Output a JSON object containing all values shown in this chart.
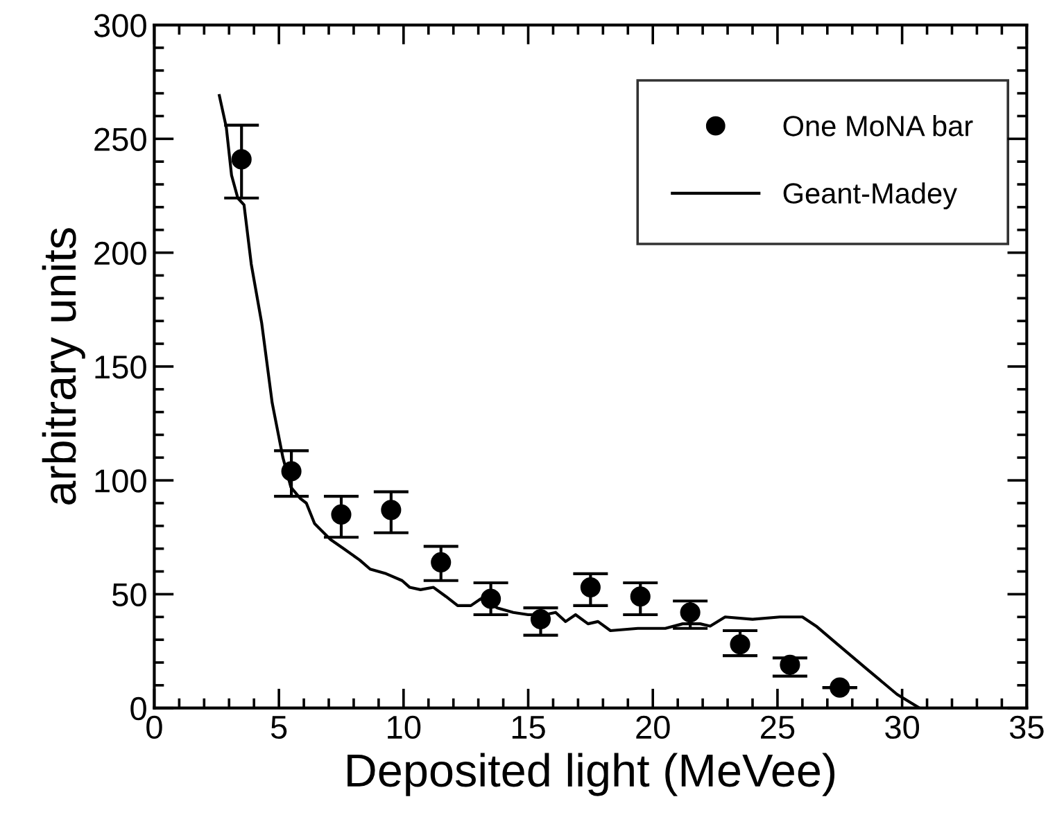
{
  "chart_data": {
    "type": "scatter",
    "xlabel": "Deposited light (MeVee)",
    "ylabel": "arbitrary units",
    "xlim": [
      0,
      35
    ],
    "xticks": [
      0,
      5,
      10,
      15,
      20,
      25,
      30,
      35
    ],
    "ylim": [
      0,
      300
    ],
    "yticks": [
      0,
      50,
      100,
      150,
      200,
      250,
      300
    ],
    "grid": false,
    "legend": "top right",
    "marker": "circle",
    "series": [
      {
        "name": "One MoNA bar",
        "color": "#000000",
        "x": [
          3.5,
          5.5,
          7.5,
          9.5,
          11.5,
          13.5,
          15.5,
          17.5,
          19.5,
          21.5,
          23.5,
          25.5,
          27.5
        ],
        "values": [
          241,
          104,
          85,
          87,
          64,
          48,
          39,
          53,
          49,
          42,
          28,
          19,
          9
        ],
        "errors": [
          [
            224,
            256
          ],
          [
            93,
            113
          ],
          [
            75,
            93
          ],
          [
            77,
            95
          ],
          [
            56,
            71
          ],
          [
            41,
            55
          ],
          [
            32,
            44
          ],
          [
            45,
            59
          ],
          [
            41,
            55
          ],
          [
            35,
            47
          ],
          [
            23,
            34
          ],
          [
            14,
            22
          ],
          null
        ]
      },
      {
        "name": "Geant-Madey",
        "type": "line",
        "color": "#000000",
        "marker": "none",
        "line_style": "solid",
        "x": [
          2.61,
          2.89,
          3.1,
          3.35,
          3.6,
          3.89,
          4.31,
          4.73,
          5.16,
          5.48,
          5.86,
          6.1,
          6.43,
          7.07,
          7.6,
          8.24,
          8.66,
          9.3,
          9.94,
          10.25,
          10.68,
          11.2,
          11.7,
          12.17,
          12.7,
          13.1,
          13.76,
          14.4,
          15.0,
          15.67,
          16.1,
          16.5,
          16.9,
          17.4,
          17.8,
          18.3,
          19.4,
          20.5,
          21.2,
          21.9,
          22.3,
          22.9,
          24.0,
          25.1,
          26.0,
          26.55,
          27.3,
          28.6,
          29.8,
          30.7
        ],
        "values": [
          269,
          255,
          234,
          224,
          221,
          195,
          169,
          134,
          110,
          97,
          92,
          90,
          81,
          74,
          70,
          65,
          61,
          59,
          56,
          53,
          52,
          53,
          49,
          45,
          45,
          48,
          44,
          42,
          41,
          41,
          42,
          38,
          41,
          37,
          38,
          34,
          35,
          35,
          37,
          37,
          36,
          40,
          39,
          40,
          40,
          36,
          29,
          17,
          6,
          0
        ]
      }
    ]
  }
}
